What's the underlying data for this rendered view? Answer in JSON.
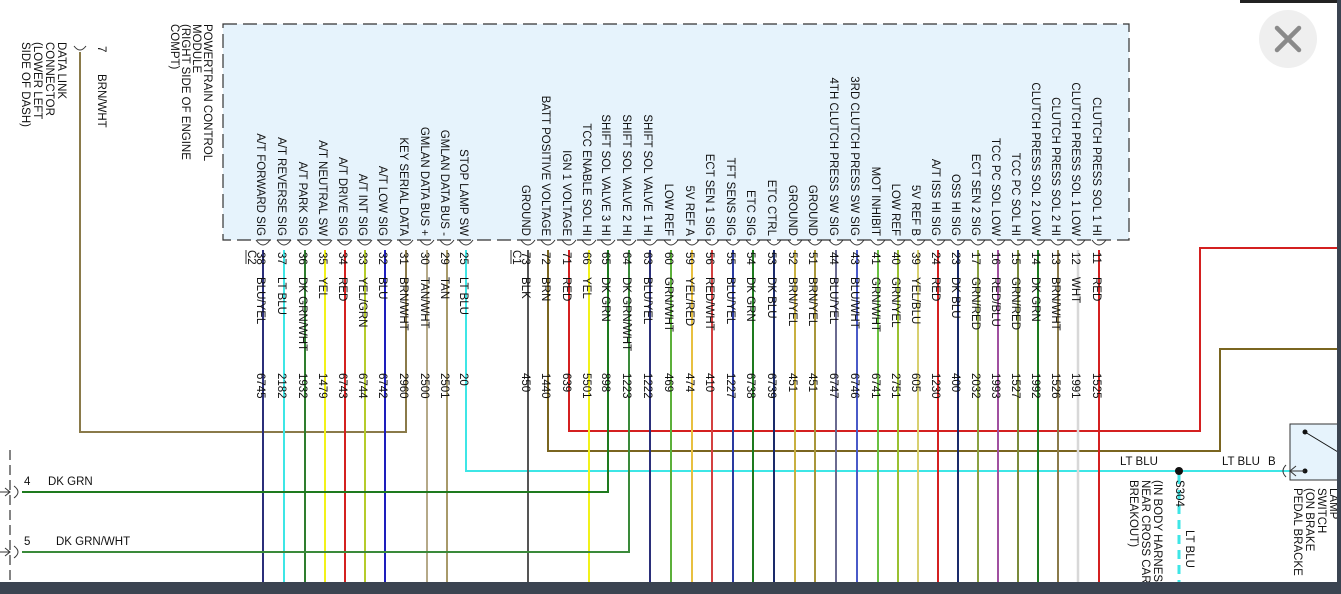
{
  "module": {
    "title_lines": [
      "POWERTRAIN CONTROL",
      "MODULE",
      "(RIGHT SIDE OF ENGINE",
      "COMPT)"
    ],
    "fill_color": "#e6f3fc",
    "connectors": [
      "C2",
      "C1"
    ]
  },
  "pins": [
    {
      "conn": "C2",
      "pin": "38",
      "func": "A/T FORWARD SIG",
      "wire": "BLU/YEL",
      "circuit": "6745",
      "color": "#2b2f7a"
    },
    {
      "conn": "C2",
      "pin": "37",
      "func": "A/T REVERSE SIG",
      "wire": "LT BLU",
      "circuit": "2182",
      "color": "#3ee6e6"
    },
    {
      "conn": "C2",
      "pin": "36",
      "func": "A/T PARK SIG",
      "wire": "DK GRN/WHT",
      "circuit": "1932",
      "color": "#2e7d2e"
    },
    {
      "conn": "C2",
      "pin": "35",
      "func": "A/T NEUTRAL SW",
      "wire": "YEL",
      "circuit": "1479",
      "color": "#f2f21a"
    },
    {
      "conn": "C2",
      "pin": "34",
      "func": "A/T DRIVE SIG",
      "wire": "RED",
      "circuit": "6743",
      "color": "#d42020"
    },
    {
      "conn": "C2",
      "pin": "33",
      "func": "A/T INT SIG",
      "wire": "YEL/GRN",
      "circuit": "6744",
      "color": "#b5cc2a"
    },
    {
      "conn": "C2",
      "pin": "32",
      "func": "A/T LOW SIG",
      "wire": "BLU",
      "circuit": "6742",
      "color": "#1d1dbf"
    },
    {
      "conn": "C2",
      "pin": "31",
      "func": "KEY SERIAL DATA",
      "wire": "BRN/WHT",
      "circuit": "2960",
      "color": "#a39270"
    },
    {
      "conn": "C2",
      "pin": "30",
      "func": "GMLAN DATA BUS +",
      "wire": "TAN/WHT",
      "circuit": "2500",
      "color": "#b5a988"
    },
    {
      "conn": "C2",
      "pin": "29",
      "func": "GMLAN DATA BUS -",
      "wire": "TAN",
      "circuit": "2501",
      "color": "#a89a6a"
    },
    {
      "conn": "C2",
      "pin": "25",
      "func": "STOP LAMP SW",
      "wire": "LT BLU",
      "circuit": "20",
      "color": "#3ee6e6"
    },
    {
      "conn": "C1",
      "pin": "73",
      "func": "GROUND",
      "wire": "BLK",
      "circuit": "450",
      "color": "#555555"
    },
    {
      "conn": "C1",
      "pin": "72",
      "func": "BATT POSITIVE VOLTAGE",
      "wire": "BRN",
      "circuit": "1440",
      "color": "#7a6520"
    },
    {
      "conn": "C1",
      "pin": "71",
      "func": "IGN 1 VOLTAGE",
      "wire": "RED",
      "circuit": "639",
      "color": "#d42020"
    },
    {
      "conn": "C1",
      "pin": "66",
      "func": "TCC ENABLE SOL HI",
      "wire": "YEL",
      "circuit": "5501",
      "color": "#f2f21a"
    },
    {
      "conn": "C1",
      "pin": "65",
      "func": "SHIFT SOL VALVE 3 HI",
      "wire": "DK GRN",
      "circuit": "898",
      "color": "#1e7a1e"
    },
    {
      "conn": "C1",
      "pin": "64",
      "func": "SHIFT SOL VALVE 2 HI",
      "wire": "DK GRN/WHT",
      "circuit": "1223",
      "color": "#3a8a3a"
    },
    {
      "conn": "C1",
      "pin": "63",
      "func": "SHIFT SOL VALVE 1 HI",
      "wire": "BLU/YEL",
      "circuit": "1222",
      "color": "#2b2f7a"
    },
    {
      "conn": "C1",
      "pin": "60",
      "func": "LOW REF",
      "wire": "GRN/WHT",
      "circuit": "469",
      "color": "#5cb03a"
    },
    {
      "conn": "C1",
      "pin": "59",
      "func": "5V REF A",
      "wire": "YEL/RED",
      "circuit": "474",
      "color": "#e8c040"
    },
    {
      "conn": "C1",
      "pin": "56",
      "func": "ECT SEN 1 SIG",
      "wire": "RED/WHT",
      "circuit": "410",
      "color": "#d44040"
    },
    {
      "conn": "C1",
      "pin": "55",
      "func": "TFT SENS SIG",
      "wire": "BLU/YEL",
      "circuit": "1227",
      "color": "#2a3aa0"
    },
    {
      "conn": "C1",
      "pin": "54",
      "func": "ETC SIG",
      "wire": "DK GRN",
      "circuit": "6738",
      "color": "#1e7a1e"
    },
    {
      "conn": "C1",
      "pin": "53",
      "func": "ETC CTRL",
      "wire": "DK BLU",
      "circuit": "6739",
      "color": "#1a2a6a"
    },
    {
      "conn": "C1",
      "pin": "52",
      "func": "GROUND",
      "wire": "BRN/YEL",
      "circuit": "451",
      "color": "#c8b040"
    },
    {
      "conn": "C1",
      "pin": "51",
      "func": "GROUND",
      "wire": "BRN/YEL",
      "circuit": "451",
      "color": "#a8963a"
    },
    {
      "conn": "C1",
      "pin": "44",
      "func": "4TH CLUTCH PRESS SW SIG",
      "wire": "BLU/YEL",
      "circuit": "6747",
      "color": "#6a6a90"
    },
    {
      "conn": "C1",
      "pin": "43",
      "func": "3RD CLUTCH PRESS SW SIG",
      "wire": "BLU/WHT",
      "circuit": "6746",
      "color": "#4a5ac8"
    },
    {
      "conn": "C1",
      "pin": "41",
      "func": "MOT INHIBIT",
      "wire": "GRN/WHT",
      "circuit": "6741",
      "color": "#6ac040"
    },
    {
      "conn": "C1",
      "pin": "40",
      "func": "LOW REF",
      "wire": "GRN/YEL",
      "circuit": "2751",
      "color": "#9ac030"
    },
    {
      "conn": "C1",
      "pin": "39",
      "func": "5V REF B",
      "wire": "YEL/BLU",
      "circuit": "605",
      "color": "#d8d070"
    },
    {
      "conn": "C1",
      "pin": "24",
      "func": "A/T ISS HI SIG",
      "wire": "RED",
      "circuit": "1230",
      "color": "#d42020"
    },
    {
      "conn": "C1",
      "pin": "23",
      "func": "OSS HI SIG",
      "wire": "DK BLU",
      "circuit": "400",
      "color": "#1a2a6a"
    },
    {
      "conn": "C1",
      "pin": "17",
      "func": "ECT SEN 2 SIG",
      "wire": "GRN/RED",
      "circuit": "2032",
      "color": "#8aa040"
    },
    {
      "conn": "C1",
      "pin": "16",
      "func": "TCC PC SOL LOW",
      "wire": "RED/BLU",
      "circuit": "1993",
      "color": "#a050a0"
    },
    {
      "conn": "C1",
      "pin": "15",
      "func": "TCC PC SOL HI",
      "wire": "GRN/RED",
      "circuit": "1527",
      "color": "#7a8a3a"
    },
    {
      "conn": "C1",
      "pin": "14",
      "func": "CLUTCH PRESS SOL 2 LOW",
      "wire": "DK GRN",
      "circuit": "1992",
      "color": "#1e7a1e"
    },
    {
      "conn": "C1",
      "pin": "13",
      "func": "CLUTCH PRESS SOL 2 HI",
      "wire": "BRN/WHT",
      "circuit": "1526",
      "color": "#8a7a4a"
    },
    {
      "conn": "C1",
      "pin": "12",
      "func": "CLUTCH PRESS SOL 1 LOW",
      "wire": "WHT",
      "circuit": "1991",
      "color": "#d8d8d8"
    },
    {
      "conn": "C1",
      "pin": "11",
      "func": "CLUTCH PRESS SOL 1 HI",
      "wire": "RED",
      "circuit": "1525",
      "color": "#d42020"
    }
  ],
  "data_link": {
    "title_lines": [
      "DATA LINK",
      "CONNECTOR",
      "(LOWER LEFT",
      "SIDE OF DASH)"
    ],
    "pin": "7",
    "wire": "BRN/WHT",
    "wire_color": "#8a7a4a"
  },
  "left_connector": {
    "pins": [
      {
        "pin": "4",
        "wire": "DK GRN"
      },
      {
        "pin": "5",
        "wire": "DK GRN/WHT"
      }
    ]
  },
  "splice": {
    "id": "S304",
    "location_lines": [
      "(IN BODY HARNES",
      "NEAR CROSS CAR",
      "BREAKOUT)"
    ],
    "wire_left": "LT BLU",
    "wire_right": "LT BLU",
    "wire_down": "LT BLU",
    "pin_right": "B"
  },
  "stop_lamp_switch": {
    "title_lines": [
      "LAMP",
      "SWITCH",
      "(ON BRAKE",
      "PEDAL BRACKE"
    ]
  },
  "ui": {
    "close_button": "close"
  }
}
